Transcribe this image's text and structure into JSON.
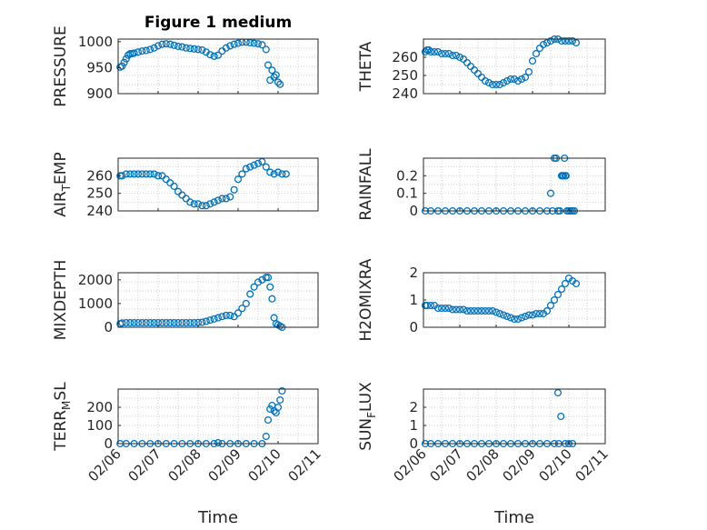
{
  "figure": {
    "title": "Figure 1 medium"
  },
  "colors": {
    "marker": "#0072BD",
    "axis": "#262626",
    "grid": "#bdbdbd"
  },
  "chart_data": [
    {
      "type": "scatter",
      "id": "pressure",
      "ylabel": "PRESSURE",
      "ylabel_sub": "",
      "ylim": [
        900,
        1005
      ],
      "yticks": [
        900,
        950,
        1000
      ],
      "xlim": [
        0,
        5
      ],
      "xticks": [
        0,
        1,
        2,
        3,
        4,
        5
      ],
      "xticklabels": [
        "02/06",
        "02/07",
        "02/08",
        "02/09",
        "02/10",
        "02/11"
      ],
      "show_xlabels": false,
      "xlabel": "",
      "x": [
        0.05,
        0.1,
        0.15,
        0.2,
        0.25,
        0.3,
        0.35,
        0.4,
        0.5,
        0.6,
        0.7,
        0.8,
        0.9,
        1.0,
        1.1,
        1.2,
        1.3,
        1.4,
        1.5,
        1.6,
        1.7,
        1.8,
        1.9,
        2.0,
        2.1,
        2.2,
        2.3,
        2.4,
        2.5,
        2.6,
        2.7,
        2.8,
        2.9,
        3.0,
        3.1,
        3.2,
        3.3,
        3.4,
        3.5,
        3.6,
        3.7,
        3.75,
        3.8,
        3.85,
        3.9,
        3.95,
        4.0,
        4.05
      ],
      "y": [
        951,
        953,
        960,
        967,
        974,
        977,
        977,
        978,
        980,
        982,
        983,
        985,
        988,
        992,
        995,
        996,
        995,
        993,
        991,
        990,
        988,
        987,
        986,
        985,
        984,
        980,
        975,
        972,
        974,
        982,
        988,
        992,
        995,
        997,
        999,
        999,
        998,
        997,
        996,
        994,
        985,
        955,
        926,
        945,
        932,
        936,
        922,
        918
      ]
    },
    {
      "type": "scatter",
      "id": "theta",
      "ylabel": "THETA",
      "ylabel_sub": "",
      "ylim": [
        240,
        270
      ],
      "yticks": [
        240,
        250,
        260
      ],
      "xlim": [
        0,
        5
      ],
      "xticks": [
        0,
        1,
        2,
        3,
        4,
        5
      ],
      "xticklabels": [
        "02/06",
        "02/07",
        "02/08",
        "02/09",
        "02/10",
        "02/11"
      ],
      "show_xlabels": false,
      "xlabel": "",
      "x": [
        0.05,
        0.1,
        0.15,
        0.2,
        0.3,
        0.4,
        0.5,
        0.6,
        0.7,
        0.8,
        0.9,
        1.0,
        1.1,
        1.2,
        1.3,
        1.4,
        1.5,
        1.6,
        1.7,
        1.8,
        1.9,
        2.0,
        2.1,
        2.2,
        2.3,
        2.4,
        2.5,
        2.6,
        2.7,
        2.8,
        2.9,
        3.0,
        3.1,
        3.2,
        3.3,
        3.4,
        3.5,
        3.6,
        3.7,
        3.8,
        3.9,
        4.0,
        4.1,
        4.2
      ],
      "y": [
        263,
        264,
        264,
        263,
        263,
        263,
        262,
        262,
        262,
        261,
        261,
        260,
        259,
        257,
        255,
        253,
        251,
        249,
        247,
        246,
        245,
        245,
        245,
        246,
        247,
        248,
        248,
        247,
        248,
        249,
        252,
        258,
        262,
        265,
        267,
        268,
        269,
        270,
        270,
        269,
        269,
        269,
        269,
        268
      ]
    },
    {
      "type": "scatter",
      "id": "air_temp",
      "ylabel": "AIR",
      "ylabel_sub": "T",
      "ylabel_tail": "EMP",
      "ylim": [
        240,
        270
      ],
      "yticks": [
        240,
        250,
        260
      ],
      "xlim": [
        0,
        5
      ],
      "xticks": [
        0,
        1,
        2,
        3,
        4,
        5
      ],
      "xticklabels": [
        "02/06",
        "02/07",
        "02/08",
        "02/09",
        "02/10",
        "02/11"
      ],
      "show_xlabels": false,
      "xlabel": "",
      "x": [
        0.05,
        0.1,
        0.2,
        0.3,
        0.4,
        0.5,
        0.6,
        0.7,
        0.8,
        0.9,
        1.0,
        1.1,
        1.2,
        1.3,
        1.4,
        1.5,
        1.6,
        1.7,
        1.8,
        1.9,
        2.0,
        2.1,
        2.2,
        2.3,
        2.4,
        2.5,
        2.6,
        2.7,
        2.8,
        2.9,
        3.0,
        3.1,
        3.2,
        3.3,
        3.4,
        3.5,
        3.6,
        3.7,
        3.8,
        3.9,
        4.0,
        4.1,
        4.2
      ],
      "y": [
        260,
        260,
        261,
        261,
        261,
        261,
        261,
        261,
        261,
        261,
        260,
        260,
        258,
        256,
        254,
        251,
        249,
        247,
        245,
        244,
        244,
        243,
        243,
        244,
        245,
        246,
        247,
        247,
        248,
        252,
        258,
        261,
        264,
        265,
        266,
        267,
        268,
        265,
        262,
        261,
        262,
        261,
        261
      ]
    },
    {
      "type": "scatter",
      "id": "rainfall",
      "ylabel": "RAINFALL",
      "ylabel_sub": "",
      "ylim": [
        0,
        0.3
      ],
      "yticks": [
        0,
        0.1,
        0.2
      ],
      "xlim": [
        0,
        5
      ],
      "xticks": [
        0,
        1,
        2,
        3,
        4,
        5
      ],
      "xticklabels": [
        "02/06",
        "02/07",
        "02/08",
        "02/09",
        "02/10",
        "02/11"
      ],
      "show_xlabels": false,
      "xlabel": "",
      "x": [
        0.05,
        0.2,
        0.4,
        0.6,
        0.8,
        1.0,
        1.2,
        1.4,
        1.6,
        1.8,
        2.0,
        2.2,
        2.4,
        2.6,
        2.8,
        3.0,
        3.2,
        3.4,
        3.5,
        3.55,
        3.6,
        3.65,
        3.7,
        3.75,
        3.8,
        3.82,
        3.85,
        3.88,
        3.9,
        3.92,
        3.95,
        4.0,
        4.05,
        4.1,
        4.15
      ],
      "y": [
        0,
        0,
        0,
        0,
        0,
        0,
        0,
        0,
        0,
        0,
        0,
        0,
        0,
        0,
        0,
        0,
        0,
        0,
        0.1,
        0,
        0.3,
        0.3,
        0,
        0,
        0.2,
        0.2,
        0.2,
        0.3,
        0.2,
        0.2,
        0,
        0,
        0,
        0,
        0
      ]
    },
    {
      "type": "scatter",
      "id": "mixdepth",
      "ylabel": "MIXDEPTH",
      "ylabel_sub": "",
      "ylim": [
        0,
        2300
      ],
      "yticks": [
        0,
        1000,
        2000
      ],
      "xlim": [
        0,
        5
      ],
      "xticks": [
        0,
        1,
        2,
        3,
        4,
        5
      ],
      "xticklabels": [
        "02/06",
        "02/07",
        "02/08",
        "02/09",
        "02/10",
        "02/11"
      ],
      "show_xlabels": false,
      "xlabel": "",
      "x": [
        0.05,
        0.1,
        0.2,
        0.3,
        0.4,
        0.5,
        0.6,
        0.7,
        0.8,
        0.9,
        1.0,
        1.1,
        1.2,
        1.3,
        1.4,
        1.5,
        1.6,
        1.7,
        1.8,
        1.9,
        2.0,
        2.1,
        2.2,
        2.3,
        2.4,
        2.5,
        2.6,
        2.7,
        2.8,
        2.9,
        3.0,
        3.1,
        3.2,
        3.3,
        3.4,
        3.5,
        3.6,
        3.7,
        3.75,
        3.8,
        3.85,
        3.9,
        3.95,
        4.0,
        4.05,
        4.1
      ],
      "y": [
        150,
        180,
        190,
        190,
        190,
        190,
        190,
        190,
        190,
        190,
        190,
        190,
        190,
        190,
        190,
        190,
        190,
        190,
        190,
        190,
        200,
        210,
        250,
        300,
        350,
        400,
        450,
        500,
        500,
        450,
        600,
        800,
        1000,
        1400,
        1700,
        1900,
        2000,
        2100,
        2100,
        1700,
        1200,
        400,
        150,
        100,
        50,
        0
      ]
    },
    {
      "type": "scatter",
      "id": "h2omixra",
      "ylabel": "H2OMIXRA",
      "ylabel_sub": "",
      "ylim": [
        0,
        2
      ],
      "yticks": [
        0,
        1,
        2
      ],
      "xlim": [
        0,
        5
      ],
      "xticks": [
        0,
        1,
        2,
        3,
        4,
        5
      ],
      "xticklabels": [
        "02/06",
        "02/07",
        "02/08",
        "02/09",
        "02/10",
        "02/11"
      ],
      "show_xlabels": false,
      "xlabel": "",
      "x": [
        0.05,
        0.1,
        0.2,
        0.3,
        0.4,
        0.5,
        0.6,
        0.7,
        0.8,
        0.9,
        1.0,
        1.1,
        1.2,
        1.3,
        1.4,
        1.5,
        1.6,
        1.7,
        1.8,
        1.9,
        2.0,
        2.1,
        2.2,
        2.3,
        2.4,
        2.5,
        2.6,
        2.7,
        2.8,
        2.9,
        3.0,
        3.1,
        3.2,
        3.3,
        3.4,
        3.5,
        3.6,
        3.7,
        3.8,
        3.9,
        4.0,
        4.1,
        4.2
      ],
      "y": [
        0.8,
        0.8,
        0.8,
        0.8,
        0.7,
        0.7,
        0.7,
        0.7,
        0.65,
        0.65,
        0.65,
        0.65,
        0.6,
        0.6,
        0.6,
        0.6,
        0.6,
        0.6,
        0.6,
        0.6,
        0.55,
        0.5,
        0.45,
        0.4,
        0.35,
        0.3,
        0.3,
        0.35,
        0.4,
        0.45,
        0.45,
        0.5,
        0.5,
        0.5,
        0.6,
        0.8,
        1.0,
        1.2,
        1.4,
        1.6,
        1.8,
        1.7,
        1.6
      ]
    },
    {
      "type": "scatter",
      "id": "terr_msl",
      "ylabel": "TERR",
      "ylabel_sub": "M",
      "ylabel_tail": "SL",
      "ylim": [
        0,
        300
      ],
      "yticks": [
        0,
        100,
        200
      ],
      "xlim": [
        0,
        5
      ],
      "xticks": [
        0,
        1,
        2,
        3,
        4,
        5
      ],
      "xticklabels": [
        "02/06",
        "02/07",
        "02/08",
        "02/09",
        "02/10",
        "02/11"
      ],
      "show_xlabels": true,
      "xlabel": "Time",
      "x": [
        0.05,
        0.2,
        0.4,
        0.6,
        0.8,
        1.0,
        1.2,
        1.4,
        1.6,
        1.8,
        2.0,
        2.2,
        2.4,
        2.5,
        2.6,
        2.8,
        3.0,
        3.2,
        3.4,
        3.6,
        3.7,
        3.75,
        3.8,
        3.85,
        3.9,
        3.95,
        4.0,
        4.05,
        4.1
      ],
      "y": [
        0,
        0,
        0,
        0,
        0,
        0,
        0,
        0,
        0,
        0,
        0,
        0,
        0,
        5,
        0,
        0,
        0,
        0,
        0,
        0,
        40,
        130,
        190,
        210,
        180,
        170,
        200,
        240,
        290
      ]
    },
    {
      "type": "scatter",
      "id": "sun_flux",
      "ylabel": "SUN",
      "ylabel_sub": "F",
      "ylabel_tail": "LUX",
      "ylim": [
        0,
        3
      ],
      "yticks": [
        0,
        1,
        2
      ],
      "xlim": [
        0,
        5
      ],
      "xticks": [
        0,
        1,
        2,
        3,
        4,
        5
      ],
      "xticklabels": [
        "02/06",
        "02/07",
        "02/08",
        "02/09",
        "02/10",
        "02/11"
      ],
      "show_xlabels": true,
      "xlabel": "Time",
      "x": [
        0.05,
        0.2,
        0.4,
        0.6,
        0.8,
        1.0,
        1.2,
        1.4,
        1.6,
        1.8,
        2.0,
        2.2,
        2.4,
        2.6,
        2.8,
        3.0,
        3.2,
        3.4,
        3.6,
        3.7,
        3.72,
        3.78,
        3.9,
        4.0,
        4.1
      ],
      "y": [
        0,
        0,
        0,
        0,
        0,
        0,
        0,
        0,
        0,
        0,
        0,
        0,
        0,
        0,
        0,
        0,
        0,
        0,
        0,
        2.8,
        0,
        1.5,
        0,
        0,
        0
      ]
    }
  ]
}
